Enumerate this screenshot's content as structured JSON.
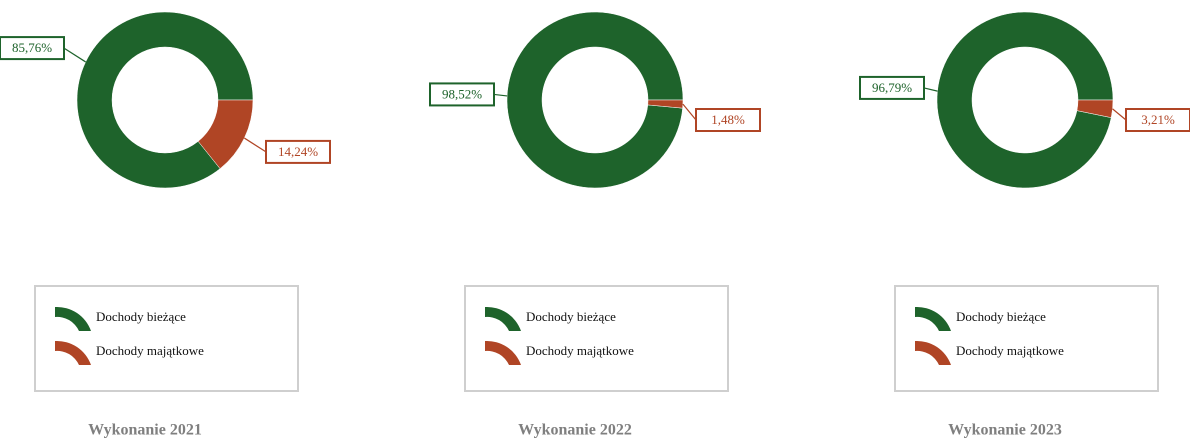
{
  "chart_data": [
    {
      "type": "donut",
      "title": "Wykonanie 2021",
      "categories": [
        "Dochody bieżące",
        "Dochody majątkowe"
      ],
      "values": [
        85.76,
        14.24
      ],
      "value_labels": [
        "85,76%",
        "14,24%"
      ],
      "colors": [
        "#1e632b",
        "#b04525"
      ]
    },
    {
      "type": "donut",
      "title": "Wykonanie 2022",
      "categories": [
        "Dochody bieżące",
        "Dochody majątkowe"
      ],
      "values": [
        98.52,
        1.48
      ],
      "value_labels": [
        "98,52%",
        "1,48%"
      ],
      "colors": [
        "#1e632b",
        "#b04525"
      ]
    },
    {
      "type": "donut",
      "title": "Wykonanie 2023",
      "categories": [
        "Dochody bieżące",
        "Dochody majątkowe"
      ],
      "values": [
        96.79,
        3.21
      ],
      "value_labels": [
        "96,79%",
        "3,21%"
      ],
      "colors": [
        "#1e632b",
        "#b04525"
      ]
    }
  ]
}
